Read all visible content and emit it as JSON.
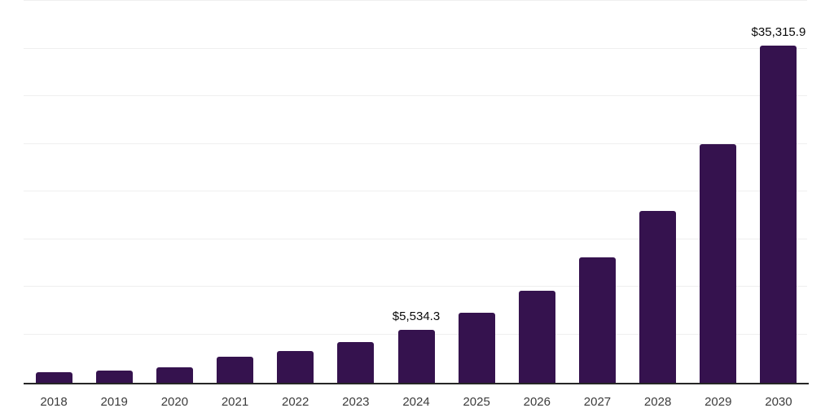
{
  "chart_data": {
    "type": "bar",
    "title": "",
    "xlabel": "",
    "ylabel": "",
    "categories": [
      "2018",
      "2019",
      "2020",
      "2021",
      "2022",
      "2023",
      "2024",
      "2025",
      "2026",
      "2027",
      "2028",
      "2029",
      "2030"
    ],
    "values": [
      1040,
      1220,
      1560,
      2700,
      3330,
      4270,
      5534.3,
      7280,
      9610,
      13080,
      17970,
      24970,
      35315.9
    ],
    "bar_labels": [
      "",
      "",
      "",
      "",
      "",
      "",
      "$5,534.3",
      "",
      "",
      "",
      "",
      "",
      "$35,315.9"
    ],
    "ylim": [
      0,
      40000
    ],
    "gridline_step": 5000,
    "grid": true,
    "legend": "none",
    "y_axis_labels_visible": false,
    "colors": {
      "bar": "#35124e",
      "axis_line": "#262626",
      "gridline": "#efefef",
      "value_label": "#0a0a0a",
      "tick_label": "#3c3c3c",
      "background": "#ffffff"
    }
  }
}
